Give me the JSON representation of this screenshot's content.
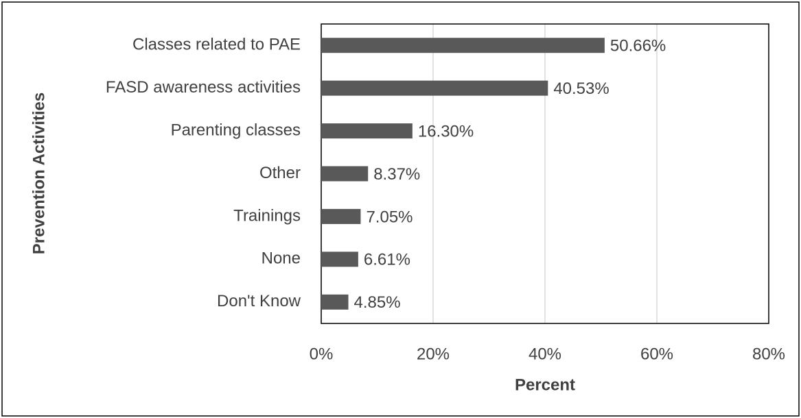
{
  "chart_data": {
    "type": "bar",
    "orientation": "horizontal",
    "x_label": "Percent",
    "y_label": "Prevention Activities",
    "categories": [
      "Classes related to PAE",
      "FASD awareness activities",
      "Parenting classes",
      "Other",
      "Trainings",
      "None",
      "Don't Know"
    ],
    "values": [
      50.66,
      40.53,
      16.3,
      8.37,
      7.05,
      6.61,
      4.85
    ],
    "value_labels": [
      "50.66%",
      "40.53%",
      "16.30%",
      "8.37%",
      "7.05%",
      "6.61%",
      "4.85%"
    ],
    "color": "#595959",
    "xlim": [
      0,
      80
    ],
    "xticks": [
      {
        "value": 0,
        "label": "0%"
      },
      {
        "value": 20,
        "label": "20%"
      },
      {
        "value": 40,
        "label": "40%"
      },
      {
        "value": 60,
        "label": "60%"
      },
      {
        "value": 80,
        "label": "80%"
      }
    ],
    "grid": true
  }
}
